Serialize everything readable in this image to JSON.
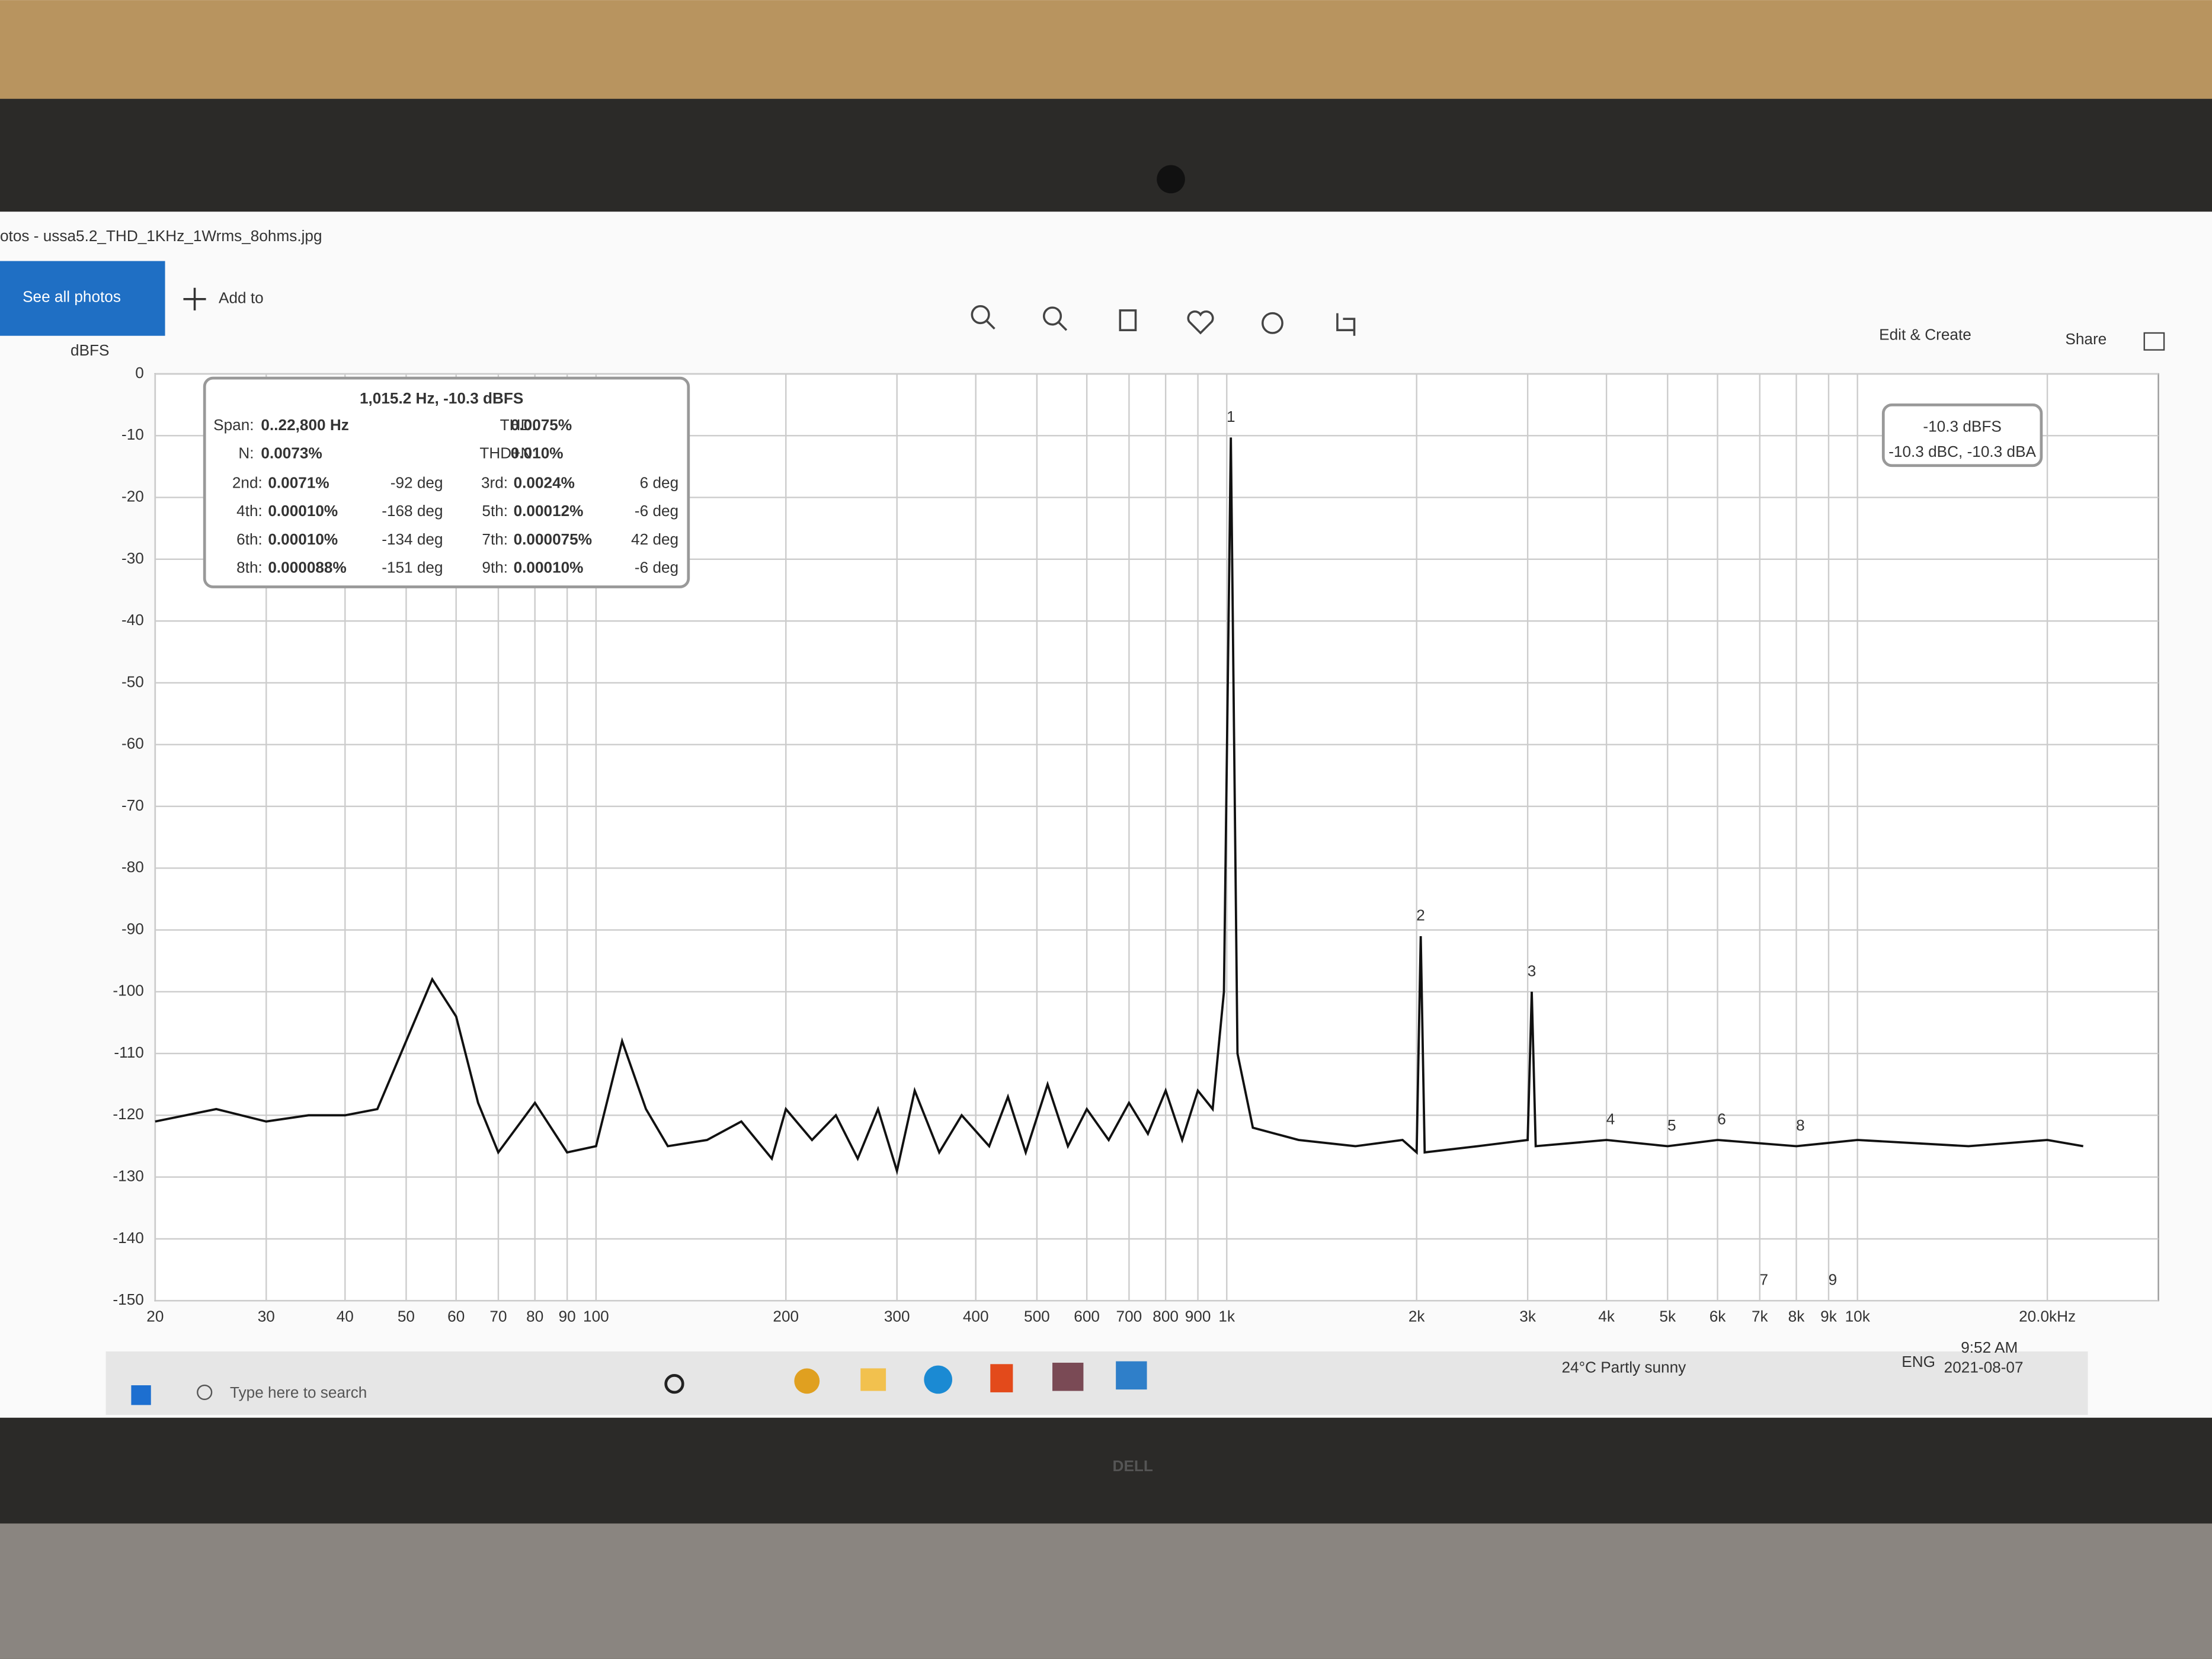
{
  "window": {
    "title": "otos - ussa5.2_THD_1KHz_1Wrms_8ohms.jpg",
    "toolbar": {
      "see_all": "See all photos",
      "add_to": "Add to",
      "edit_create": "Edit & Create",
      "share": "Share"
    }
  },
  "taskbar": {
    "search": "Type here to search",
    "weather": "24°C Partly sunny",
    "language": "ENG",
    "time": "9:52 AM",
    "date": "2021-08-07"
  },
  "laptop": {
    "brand": "DELL"
  },
  "chart_data": {
    "type": "line",
    "y_label": "dBFS",
    "log_x": true,
    "grid": true,
    "xlim": [
      20,
      30000
    ],
    "ylim": [
      -150,
      0
    ],
    "yticks": [
      0,
      -10,
      -20,
      -30,
      -40,
      -50,
      -60,
      -70,
      -80,
      -90,
      -100,
      -110,
      -120,
      -130,
      -140,
      -150
    ],
    "xticks": [
      20,
      30,
      40,
      50,
      60,
      70,
      80,
      90,
      100,
      200,
      300,
      400,
      500,
      600,
      700,
      800,
      900,
      {
        "value": 1000,
        "label": "1k"
      },
      {
        "value": 2000,
        "label": "2k"
      },
      {
        "value": 3000,
        "label": "3k"
      },
      {
        "value": 4000,
        "label": "4k"
      },
      {
        "value": 5000,
        "label": "5k"
      },
      {
        "value": 6000,
        "label": "6k"
      },
      {
        "value": 7000,
        "label": "7k"
      },
      {
        "value": 8000,
        "label": "8k"
      },
      {
        "value": 9000,
        "label": "9k"
      },
      {
        "value": 10000,
        "label": "10k"
      },
      {
        "value": 20000,
        "label": "20.0kHz"
      }
    ],
    "x": [
      20,
      25,
      30,
      35,
      40,
      45,
      50,
      55,
      60,
      65,
      70,
      80,
      90,
      100,
      110,
      120,
      130,
      150,
      170,
      190,
      200,
      220,
      240,
      260,
      280,
      300,
      320,
      350,
      380,
      420,
      450,
      480,
      520,
      560,
      600,
      650,
      700,
      750,
      800,
      850,
      900,
      950,
      990,
      1015.2,
      1040,
      1100,
      1300,
      1600,
      1900,
      2000,
      2030,
      2060,
      2500,
      3000,
      3045,
      3090,
      4000,
      5000,
      6000,
      8000,
      10000,
      15000,
      20000,
      22800
    ],
    "series": [
      {
        "color": "#111111",
        "values": [
          -121,
          -119,
          -121,
          -120,
          -120,
          -119,
          -108,
          -98,
          -104,
          -118,
          -126,
          -118,
          -126,
          -125,
          -108,
          -119,
          -125,
          -124,
          -121,
          -127,
          -119,
          -124,
          -120,
          -127,
          -119,
          -129,
          -116,
          -126,
          -120,
          -125,
          -117,
          -126,
          -115,
          -125,
          -119,
          -124,
          -118,
          -123,
          -116,
          -124,
          -116,
          -119,
          -100,
          -10.3,
          -110,
          -122,
          -124,
          -125,
          -124,
          -126,
          -91,
          -126,
          -125,
          -124,
          -100,
          -125,
          -124,
          -125,
          -124,
          -125,
          -124,
          -125,
          -124,
          -125
        ]
      }
    ],
    "peaks": {
      "labels": [
        "1",
        "2",
        "3",
        "4",
        "5",
        "6",
        "7",
        "8",
        "9"
      ],
      "x": [
        1015.2,
        2030,
        3045,
        4060,
        5076,
        6091,
        7106,
        8121,
        9136
      ]
    },
    "info_box": {
      "title": "1,015.2 Hz, -10.3 dBFS",
      "summary": [
        [
          "Span:",
          "0..22,800 Hz",
          "THD:",
          "0.0075%"
        ],
        [
          "N:",
          "0.0073%",
          "THD+N:",
          "0.010%"
        ]
      ],
      "harmonics": [
        [
          "2nd:",
          "0.0071%",
          "-92 deg",
          "3rd:",
          "0.0024%",
          "6 deg"
        ],
        [
          "4th:",
          "0.00010%",
          "-168 deg",
          "5th:",
          "0.00012%",
          "-6 deg"
        ],
        [
          "6th:",
          "0.00010%",
          "-134 deg",
          "7th:",
          "0.000075%",
          "42 deg"
        ],
        [
          "8th:",
          "0.000088%",
          "-151 deg",
          "9th:",
          "0.00010%",
          "-6 deg"
        ]
      ]
    },
    "marker": {
      "value": "-10.3 dBFS",
      "detail": "-10.3 dBC, -10.3 dBA"
    }
  }
}
